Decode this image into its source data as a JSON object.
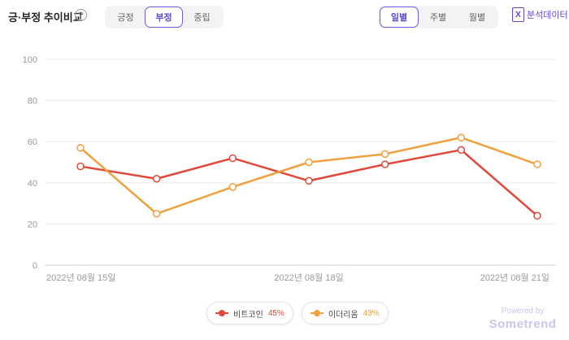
{
  "header": {
    "title": "긍·부정 추이비교",
    "help": "?",
    "sentiment_tabs": [
      {
        "label": "긍정",
        "active": false
      },
      {
        "label": "부정",
        "active": true
      },
      {
        "label": "중립",
        "active": false
      }
    ],
    "period_tabs": [
      {
        "label": "일별",
        "active": true
      },
      {
        "label": "주별",
        "active": false
      },
      {
        "label": "월별",
        "active": false
      }
    ],
    "export_label": "분석데이터",
    "export_icon": "excel-icon"
  },
  "colors": {
    "accent": "#6c5ce7",
    "bitcoin": "#e0493a",
    "ethereum": "#f0a03c"
  },
  "chart_data": {
    "type": "line",
    "x": [
      "2022-08-15",
      "2022-08-16",
      "2022-08-17",
      "2022-08-18",
      "2022-08-19",
      "2022-08-20",
      "2022-08-21"
    ],
    "x_tick_labels": [
      "2022년 08월 15일",
      "2022년 08월 18일",
      "2022년 08월 21일"
    ],
    "x_tick_index": [
      0,
      3,
      6
    ],
    "ylim": [
      0,
      100
    ],
    "y_ticks": [
      0,
      20,
      40,
      60,
      80,
      100
    ],
    "grid": true,
    "series": [
      {
        "name": "비트코인",
        "color": "#e0493a",
        "share": "45%",
        "values": [
          48,
          42,
          52,
          41,
          49,
          56,
          24
        ]
      },
      {
        "name": "이더리움",
        "color": "#f0a03c",
        "share": "43%",
        "values": [
          57,
          25,
          38,
          50,
          54,
          62,
          49
        ]
      }
    ],
    "legend_position": "bottom-center"
  },
  "footer": {
    "powered_by": "Powered by",
    "brand": "Sometrend"
  }
}
